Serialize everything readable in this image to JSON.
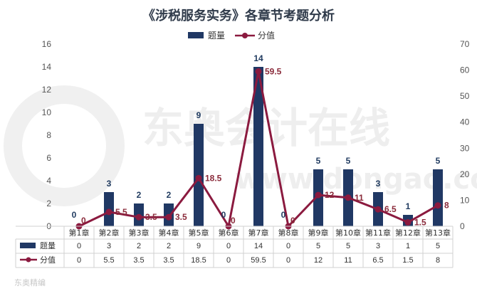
{
  "chart_data": {
    "type": "bar",
    "title": "《涉税服务实务》各章节考题分析",
    "categories": [
      "第1章",
      "第2章",
      "第3章",
      "第4章",
      "第5章",
      "第6章",
      "第7章",
      "第8章",
      "第9章",
      "第10章",
      "第11章",
      "第12章",
      "第13章"
    ],
    "series": [
      {
        "name": "题量",
        "type": "bar",
        "axis": "left",
        "color": "#203864",
        "values": [
          0,
          3,
          2,
          2,
          9,
          0,
          14,
          0,
          5,
          5,
          3,
          1,
          5
        ],
        "value_labels": [
          "0",
          "3",
          "2",
          "2",
          "9",
          "0",
          "14",
          "0",
          "5",
          "5",
          "3",
          "1",
          "5"
        ]
      },
      {
        "name": "分值",
        "type": "line",
        "axis": "right",
        "color": "#8b1a3f",
        "values": [
          0,
          5.5,
          3.5,
          3.5,
          18.5,
          0,
          59.5,
          0,
          12,
          11,
          6.5,
          1.5,
          8
        ],
        "value_labels": [
          "0",
          "5.5",
          "3.5",
          "3.5",
          "18.5",
          "0",
          "59.5",
          "0",
          "12",
          "11",
          "6.5",
          "1.5",
          "8"
        ]
      }
    ],
    "y_left": {
      "range": [
        0,
        16
      ],
      "ticks": [
        "0",
        "2",
        "4",
        "6",
        "8",
        "10",
        "12",
        "14",
        "16"
      ]
    },
    "y_right": {
      "range": [
        0,
        70
      ],
      "ticks": [
        "0",
        "10",
        "20",
        "30",
        "40",
        "50",
        "60",
        "70"
      ]
    },
    "legend_position": "top-center",
    "grid": false,
    "data_table": true
  },
  "watermark": {
    "main": "东奥会计在线",
    "sub": "www.dongao.com",
    "corner": "东奥精编"
  }
}
